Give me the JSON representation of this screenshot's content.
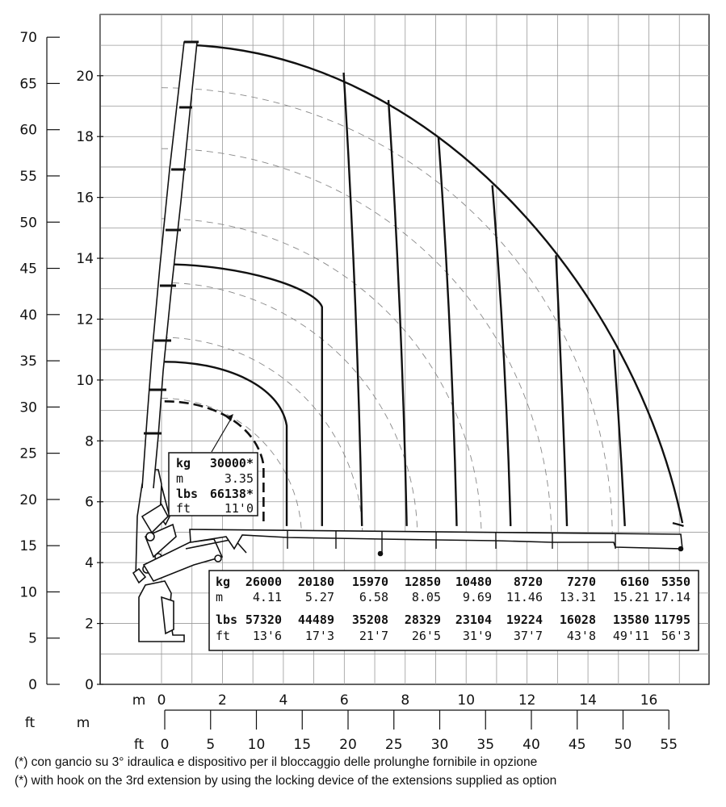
{
  "axes": {
    "left_ft_ticks": [
      "0",
      "5",
      "10",
      "15",
      "20",
      "25",
      "30",
      "35",
      "40",
      "45",
      "50",
      "55",
      "60",
      "65",
      "70"
    ],
    "left_m_ticks": [
      "0",
      "2",
      "4",
      "6",
      "8",
      "10",
      "12",
      "14",
      "16",
      "18",
      "20"
    ],
    "bottom_m_label": "m",
    "bottom_m_ticks": [
      "0",
      "2",
      "4",
      "6",
      "8",
      "10",
      "12",
      "14",
      "16"
    ],
    "bottom_ft_label": "ft",
    "bottom_ft_ticks": [
      "0",
      "5",
      "10",
      "15",
      "20",
      "25",
      "30",
      "35",
      "40",
      "45",
      "50",
      "55"
    ],
    "left_ft_unit": "ft",
    "left_m_unit": "m"
  },
  "max_load_box": {
    "kg_label": "kg",
    "kg_value": "30000*",
    "m_label": "m",
    "m_value": "3.35",
    "lbs_label": "lbs",
    "lbs_value": "66138*",
    "ft_label": "ft",
    "ft_value": "11'0"
  },
  "load_table": {
    "kg_label": "kg",
    "m_label": "m",
    "lbs_label": "lbs",
    "ft_label": "ft",
    "kg": [
      "26000",
      "20180",
      "15970",
      "12850",
      "10480",
      "8720",
      "7270",
      "6160",
      "5350"
    ],
    "m": [
      "4.11",
      "5.27",
      "6.58",
      "8.05",
      "9.69",
      "11.46",
      "13.31",
      "15.21",
      "17.14"
    ],
    "lbs": [
      "57320",
      "44489",
      "35208",
      "28329",
      "23104",
      "19224",
      "16028",
      "13580",
      "11795"
    ],
    "ft": [
      "13'6",
      "17'3",
      "21'7",
      "26'5",
      "31'9",
      "37'7",
      "43'8",
      "49'11",
      "56'3"
    ]
  },
  "footnotes": {
    "it": "(*) con gancio su 3° idraulica e dispositivo per il bloccaggio delle prolunghe fornibile in opzione",
    "en": "(*) with hook on the 3rd extension by using the locking device of the extensions supplied as option"
  },
  "chart_data": {
    "type": "load_diagram",
    "unit_x": "m",
    "unit_y": "m",
    "xlim": [
      0,
      18
    ],
    "ylim": [
      0,
      21
    ],
    "curves": [
      {
        "kg": 30000,
        "reach_m": 3.35,
        "note": "*"
      },
      {
        "kg": 26000,
        "reach_m": 4.11
      },
      {
        "kg": 20180,
        "reach_m": 5.27
      },
      {
        "kg": 15970,
        "reach_m": 6.58
      },
      {
        "kg": 12850,
        "reach_m": 8.05
      },
      {
        "kg": 10480,
        "reach_m": 9.69
      },
      {
        "kg": 8720,
        "reach_m": 11.46
      },
      {
        "kg": 7270,
        "reach_m": 13.31
      },
      {
        "kg": 6160,
        "reach_m": 15.21
      },
      {
        "kg": 5350,
        "reach_m": 17.14
      }
    ]
  }
}
